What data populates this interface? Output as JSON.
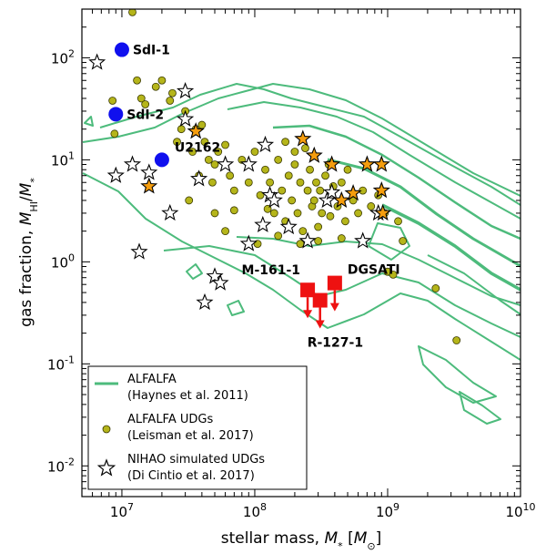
{
  "chart_data": {
    "type": "scatter",
    "xscale": "log",
    "yscale": "log",
    "xlim": [
      5000000.0,
      10000000000.0
    ],
    "ylim": [
      0.005,
      300
    ],
    "xlabel": "stellar mass, M_* [M_⊙]",
    "ylabel": "gas fraction, M_HI/M_*",
    "x_ticks": [
      {
        "value": 10000000.0,
        "base": "10",
        "exp": "7"
      },
      {
        "value": 100000000.0,
        "base": "10",
        "exp": "8"
      },
      {
        "value": 1000000000.0,
        "base": "10",
        "exp": "9"
      },
      {
        "value": 10000000000.0,
        "base": "10",
        "exp": "10"
      }
    ],
    "y_ticks": [
      {
        "value": 0.01,
        "base": "10",
        "exp": "-2"
      },
      {
        "value": 0.1,
        "base": "10",
        "exp": "-1"
      },
      {
        "value": 1,
        "base": "10",
        "exp": "0"
      },
      {
        "value": 10,
        "base": "10",
        "exp": "1"
      },
      {
        "value": 100,
        "base": "10",
        "exp": "2"
      }
    ],
    "colors": {
      "contour": "#4dbb7c",
      "udg": "#b5b51a",
      "blue": "#1010ee",
      "red": "#ee1111",
      "orange": "#f59d0e"
    },
    "legend": {
      "position": "lower-left",
      "entries": [
        {
          "line1": "ALFALFA",
          "line2": "(Haynes et al. 2011)"
        },
        {
          "line1": "ALFALFA UDGs",
          "line2": "(Leisman et al. 2017)"
        },
        {
          "line1": "NIHAO simulated UDGs",
          "line2": "(Di Cintio et al. 2017)"
        }
      ]
    },
    "labeled_objects": [
      {
        "label": "SdI-1",
        "x": 10000000.0,
        "y": 120,
        "marker": "circle",
        "color": "#1010ee"
      },
      {
        "label": "SdI-2",
        "x": 9000000.0,
        "y": 28,
        "marker": "circle",
        "color": "#1010ee"
      },
      {
        "label": "U2162",
        "x": 20000000.0,
        "y": 10,
        "marker": "circle",
        "color": "#1010ee"
      },
      {
        "label": "M-161-1",
        "x": 250000000.0,
        "y": 0.53,
        "marker": "upper-limit",
        "color": "#ee1111"
      },
      {
        "label": "R-127-1",
        "x": 310000000.0,
        "y": 0.42,
        "marker": "upper-limit",
        "color": "#ee1111"
      },
      {
        "label": "DGSATI",
        "x": 400000000.0,
        "y": 0.62,
        "marker": "upper-limit",
        "color": "#ee1111"
      }
    ],
    "udg_points": [
      [
        12000000.0,
        280
      ],
      [
        13000000.0,
        60
      ],
      [
        14000000.0,
        40
      ],
      [
        15000000.0,
        35
      ],
      [
        8500000.0,
        38
      ],
      [
        8800000.0,
        18
      ],
      [
        18000000.0,
        52
      ],
      [
        20000000.0,
        60
      ],
      [
        24000000.0,
        45
      ],
      [
        23000000.0,
        38
      ],
      [
        28000000.0,
        20
      ],
      [
        26000000.0,
        15
      ],
      [
        30000000.0,
        30
      ],
      [
        34000000.0,
        12
      ],
      [
        36000000.0,
        20
      ],
      [
        42000000.0,
        15
      ],
      [
        45000000.0,
        10
      ],
      [
        50000000.0,
        9
      ],
      [
        53000000.0,
        12
      ],
      [
        48000000.0,
        6
      ],
      [
        38000000.0,
        7
      ],
      [
        32000000.0,
        4
      ],
      [
        60000000.0,
        14
      ],
      [
        65000000.0,
        7
      ],
      [
        70000000.0,
        5
      ],
      [
        80000000.0,
        10
      ],
      [
        90000000.0,
        6
      ],
      [
        100000000.0,
        12
      ],
      [
        110000000.0,
        4.5
      ],
      [
        120000000.0,
        8
      ],
      [
        130000000.0,
        6
      ],
      [
        140000000.0,
        3
      ],
      [
        150000000.0,
        10
      ],
      [
        160000000.0,
        5
      ],
      [
        170000000.0,
        2.5
      ],
      [
        180000000.0,
        7
      ],
      [
        190000000.0,
        4
      ],
      [
        200000000.0,
        9
      ],
      [
        210000000.0,
        3
      ],
      [
        220000000.0,
        6
      ],
      [
        230000000.0,
        2
      ],
      [
        250000000.0,
        5
      ],
      [
        260000000.0,
        8
      ],
      [
        270000000.0,
        3.5
      ],
      [
        280000000.0,
        4
      ],
      [
        290000000.0,
        6
      ],
      [
        300000000.0,
        2.2
      ],
      [
        310000000.0,
        5
      ],
      [
        320000000.0,
        3
      ],
      [
        340000000.0,
        7
      ],
      [
        350000000.0,
        4
      ],
      [
        370000000.0,
        2.8
      ],
      [
        390000000.0,
        5.5
      ],
      [
        420000000.0,
        3.5
      ],
      [
        450000000.0,
        6
      ],
      [
        480000000.0,
        2.5
      ],
      [
        550000000.0,
        4
      ],
      [
        600000000.0,
        3
      ],
      [
        650000000.0,
        5
      ],
      [
        750000000.0,
        3.5
      ],
      [
        850000000.0,
        4.5
      ],
      [
        950000000.0,
        3
      ],
      [
        1200000000.0,
        2.5
      ],
      [
        150000000.0,
        1.8
      ],
      [
        220000000.0,
        1.5
      ],
      [
        300000000.0,
        1.6
      ],
      [
        450000000.0,
        1.7
      ],
      [
        1000000000.0,
        0.8
      ],
      [
        1100000000.0,
        0.75
      ],
      [
        1300000000.0,
        1.6
      ],
      [
        2300000000.0,
        0.55
      ],
      [
        3300000000.0,
        0.17
      ],
      [
        70000000.0,
        3.2
      ],
      [
        200000000.0,
        12
      ],
      [
        170000000.0,
        15
      ],
      [
        105000000.0,
        1.5
      ],
      [
        60000000.0,
        2.0
      ],
      [
        50000000.0,
        3.0
      ],
      [
        40000000.0,
        22
      ],
      [
        125000000.0,
        3.3
      ],
      [
        240000000.0,
        13
      ],
      [
        360000000.0,
        9
      ],
      [
        500000000.0,
        8
      ]
    ],
    "nihao_white_stars": [
      [
        6500000.0,
        90
      ],
      [
        30000000.0,
        47
      ],
      [
        30000000.0,
        25
      ],
      [
        12000000.0,
        9
      ],
      [
        9000000.0,
        7
      ],
      [
        16000000.0,
        7.5
      ],
      [
        23000000.0,
        3.0
      ],
      [
        13500000.0,
        1.25
      ],
      [
        38000000.0,
        6.5
      ],
      [
        60000000.0,
        9
      ],
      [
        90000000.0,
        9
      ],
      [
        120000000.0,
        14
      ],
      [
        130000000.0,
        4.5
      ],
      [
        140000000.0,
        4.0
      ],
      [
        115000000.0,
        2.3
      ],
      [
        90000000.0,
        1.5
      ],
      [
        50000000.0,
        0.72
      ],
      [
        55000000.0,
        0.62
      ],
      [
        42000000.0,
        0.4
      ],
      [
        180000000.0,
        2.2
      ],
      [
        250000000.0,
        1.6
      ],
      [
        350000000.0,
        4.0
      ],
      [
        380000000.0,
        4.8
      ],
      [
        650000000.0,
        1.6
      ],
      [
        850000000.0,
        3.0
      ]
    ],
    "nihao_orange_stars": [
      [
        16000000.0,
        5.5
      ],
      [
        36000000.0,
        19
      ],
      [
        230000000.0,
        16
      ],
      [
        280000000.0,
        11
      ],
      [
        380000000.0,
        9
      ],
      [
        450000000.0,
        4.0
      ],
      [
        550000000.0,
        4.7
      ],
      [
        700000000.0,
        9
      ],
      [
        900000000.0,
        9
      ],
      [
        900000000.0,
        5
      ],
      [
        920000000.0,
        3.0
      ]
    ]
  }
}
